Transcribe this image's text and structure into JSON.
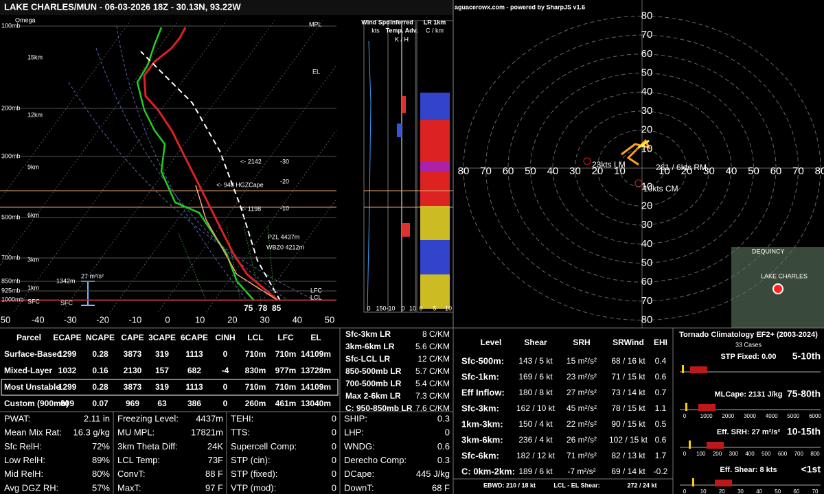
{
  "skewt": {
    "title": "LAKE CHARLES/MUN - 06-03-2026 18Z - 30.13N, 93.22W",
    "omega": "Omega",
    "pressure_labels": [
      "100mb",
      "200mb",
      "300mb",
      "500mb",
      "700mb",
      "850mb",
      "925mb",
      "1000mb"
    ],
    "height_labels": [
      "15km",
      "12km",
      "9km",
      "6km",
      "3km",
      "1km",
      "SFC"
    ],
    "temp_labels": [
      "50",
      "-40",
      "-30",
      "-20",
      "-10",
      "0",
      "10",
      "20",
      "30",
      "40",
      "50"
    ],
    "annotations": [
      "MPL",
      "EL",
      "<- 2142",
      "<- 948 HGZCape",
      "<- 1198",
      "-30",
      "-20",
      "-10",
      "PZL 4437m",
      "WBZ0 4212m",
      "LFC",
      "LCL",
      "1342m",
      "27 m²/s²",
      "SFC",
      "75",
      "78",
      "85"
    ]
  },
  "panels": {
    "wind": {
      "title": "Wind Spd",
      "unit": "kts",
      "ticks": [
        "0",
        "150"
      ]
    },
    "adv": {
      "title": "Inferred",
      "title2": "Temp. Adv.",
      "unit": "K / H",
      "ticks": [
        "-10",
        "0",
        "10"
      ]
    },
    "lr": {
      "title": "LR 1km",
      "unit": "C / km",
      "ticks": [
        "0",
        "5",
        "10"
      ]
    }
  },
  "hodograph": {
    "header": "aguacerowx.com - powered by SharpJS v1.6",
    "ring_labels": [
      "10",
      "20",
      "30",
      "40",
      "50",
      "60",
      "70",
      "80"
    ],
    "labels": [
      "261 / 6kts RM",
      "10kts CM",
      "23kts LM"
    ],
    "map": [
      "DEQUINCY",
      "LAKE CHARLES"
    ]
  },
  "parcel_table": {
    "header": [
      "Parcel",
      "ECAPE",
      "NCAPE",
      "CAPE",
      "3CAPE",
      "6CAPE",
      "CINH",
      "LCL",
      "LFC",
      "EL"
    ],
    "rows": [
      [
        "Surface-Based",
        "1299",
        "0.28",
        "3873",
        "319",
        "1113",
        "0",
        "710m",
        "710m",
        "14109m"
      ],
      [
        "Mixed-Layer",
        "1032",
        "0.16",
        "2130",
        "157",
        "682",
        "-4",
        "830m",
        "977m",
        "13728m"
      ],
      [
        "Most Unstable",
        "1299",
        "0.28",
        "3873",
        "319",
        "1113",
        "0",
        "710m",
        "710m",
        "14109m"
      ],
      [
        "Custom (900mb)",
        "609",
        "0.07",
        "969",
        "63",
        "386",
        "0",
        "260m",
        "461m",
        "13040m"
      ]
    ]
  },
  "lapse_rates": [
    [
      "Sfc-3km LR",
      "8 C/KM"
    ],
    [
      "3km-6km LR",
      "5.6 C/KM"
    ],
    [
      "Sfc-LCL LR",
      "12 C/KM"
    ],
    [
      "850-500mb LR",
      "5.7 C/KM"
    ],
    [
      "700-500mb LR",
      "5.4 C/KM"
    ],
    [
      "Max 2-6km LR",
      "7.3 C/KM"
    ],
    [
      "C: 950-850mb LR",
      "7.6 C/KM"
    ]
  ],
  "shear_table": {
    "header": [
      "Level",
      "Shear",
      "SRH",
      "SRWind",
      "EHI"
    ],
    "rows": [
      [
        "Sfc-500m:",
        "143 / 5 kt",
        "15 m²/s²",
        "68 / 16 kt",
        "0.4"
      ],
      [
        "Sfc-1km:",
        "169 / 6 kt",
        "23 m²/s²",
        "71 / 15 kt",
        "0.6"
      ],
      [
        "Eff Inflow:",
        "180 / 8 kt",
        "27 m²/s²",
        "73 / 14 kt",
        "0.7"
      ],
      [
        "Sfc-3km:",
        "162 / 10 kt",
        "45 m²/s²",
        "78 / 15 kt",
        "1.1"
      ],
      [
        "1km-3km:",
        "150 / 4 kt",
        "22 m²/s²",
        "90 / 15 kt",
        "0.5"
      ],
      [
        "3km-6km:",
        "236 / 4 kt",
        "26 m²/s²",
        "102 / 15 kt",
        "0.6"
      ],
      [
        "Sfc-6km:",
        "182 / 12 kt",
        "71 m²/s²",
        "82 / 13 kt",
        "1.7"
      ],
      [
        "C: 0km-2km:",
        "189 / 6 kt",
        "-7 m²/s²",
        "69 / 14 kt",
        "-0.2"
      ]
    ],
    "footer": [
      "EBWD: 210 / 18 kt",
      "LCL - EL Shear:",
      "272 / 24 kt"
    ]
  },
  "climatology": {
    "title": "Tornado Climatology EF2+ (2003-2024)",
    "cases": "33 Cases",
    "panels": [
      {
        "label": "STP Fixed: 0.00",
        "pct": "5-10th",
        "ticks": []
      },
      {
        "label": "MLCape: 2131 J/kg",
        "pct": "75-80th",
        "ticks": [
          "0",
          "1000",
          "2000",
          "3000",
          "4000",
          "5000",
          "6000"
        ]
      },
      {
        "label": "Eff. SRH: 27 m²/s²",
        "pct": "10-15th",
        "ticks": [
          "0",
          "100",
          "200",
          "300",
          "400",
          "500",
          "600",
          "700",
          "800"
        ]
      },
      {
        "label": "Eff. Shear: 8 kts",
        "pct": "<1st",
        "ticks": [
          "0",
          "10",
          "20",
          "30",
          "40",
          "50",
          "60",
          "70"
        ]
      }
    ]
  },
  "indices": [
    [
      [
        "PWAT:",
        "2.11 in"
      ],
      [
        "Mean Mix Rat:",
        "16.3 g/kg"
      ],
      [
        "Sfc RelH:",
        "72%"
      ],
      [
        "Low RelH:",
        "89%"
      ],
      [
        "Mid RelH:",
        "80%"
      ],
      [
        "Avg DGZ RH:",
        "57%"
      ]
    ],
    [
      [
        "Freezing Level:",
        "4437m"
      ],
      [
        "MU MPL:",
        "17821m"
      ],
      [
        "3km Theta Diff:",
        "24K"
      ],
      [
        "LCL Temp:",
        "73F"
      ],
      [
        "ConvT:",
        "88 F"
      ],
      [
        "MaxT:",
        "97 F"
      ]
    ],
    [
      [
        "TEHI:",
        "0"
      ],
      [
        "TTS:",
        "0"
      ],
      [
        "Supercell Comp:",
        "0"
      ],
      [
        "STP (cin):",
        "0"
      ],
      [
        "STP (fixed):",
        "0"
      ],
      [
        "VTP (mod):",
        "0"
      ]
    ],
    [
      [
        "SHIP:",
        "0.3"
      ],
      [
        "LHP:",
        "0"
      ],
      [
        "WNDG:",
        "0.6"
      ],
      [
        "Derecho Comp:",
        "0.3"
      ],
      [
        "DCape:",
        "445 J/kg"
      ],
      [
        "DownT:",
        "68 F"
      ]
    ]
  ]
}
